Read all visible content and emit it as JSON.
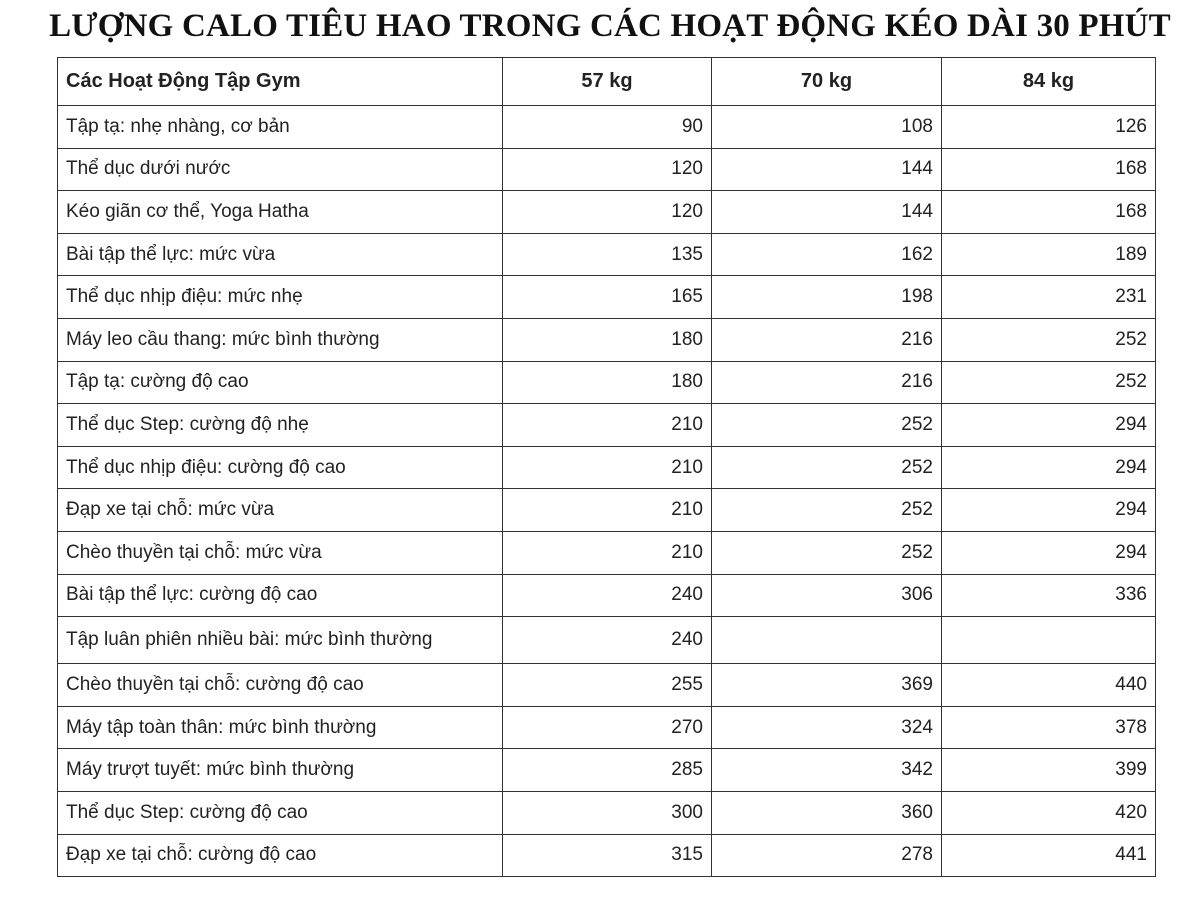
{
  "title": "LƯỢNG CALO TIÊU HAO TRONG CÁC HOẠT ĐỘNG KÉO DÀI 30 PHÚT",
  "table": {
    "header": [
      "Các Hoạt Động Tập Gym",
      "57 kg",
      "70 kg",
      "84 kg"
    ],
    "rows": [
      [
        "Tập tạ: nhẹ nhàng, cơ bản",
        90,
        108,
        126
      ],
      [
        "Thể dục dưới nước",
        120,
        144,
        168
      ],
      [
        "Kéo giãn cơ thể, Yoga Hatha",
        120,
        144,
        168
      ],
      [
        "Bài tập thể lực: mức vừa",
        135,
        162,
        189
      ],
      [
        "Thể dục nhịp điệu: mức nhẹ",
        165,
        198,
        231
      ],
      [
        "Máy leo cầu thang: mức bình thường",
        180,
        216,
        252
      ],
      [
        "Tập tạ: cường độ cao",
        180,
        216,
        252
      ],
      [
        "Thể dục Step: cường độ nhẹ",
        210,
        252,
        294
      ],
      [
        "Thể dục nhịp điệu: cường độ cao",
        210,
        252,
        294
      ],
      [
        "Đạp xe tại chỗ: mức vừa",
        210,
        252,
        294
      ],
      [
        "Chèo thuyền tại chỗ: mức vừa",
        210,
        252,
        294
      ],
      [
        "Bài tập thể lực: cường độ cao",
        240,
        306,
        336
      ],
      [
        "Tập luân phiên nhiều bài: mức bình thường",
        240,
        null,
        null
      ],
      [
        "Chèo thuyền tại chỗ: cường độ cao",
        255,
        369,
        440
      ],
      [
        "Máy tập toàn thân: mức bình thường",
        270,
        324,
        378
      ],
      [
        "Máy trượt tuyết: mức bình thường",
        285,
        342,
        399
      ],
      [
        "Thể dục Step: cường độ cao",
        300,
        360,
        420
      ],
      [
        "Đạp xe tại chỗ: cường độ cao",
        315,
        278,
        441
      ]
    ]
  }
}
